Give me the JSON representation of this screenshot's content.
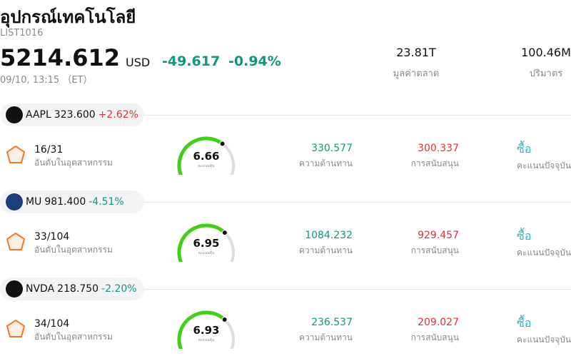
{
  "header": {
    "title": "อุปกรณ์เทคโนโลยี",
    "code": "LIST1016",
    "price": "5214.612",
    "currency": "USD",
    "change": "-49.617",
    "change_pct": "-0.94%",
    "time": "09/10, 13:15 （ET）",
    "stats": [
      {
        "value": "23.81T",
        "label": "มูลค่าตลาด"
      },
      {
        "value": "100.46M",
        "label": "ปริมาตร"
      }
    ]
  },
  "gauge_range": [
    0,
    10
  ],
  "stocks": [
    {
      "ticker": "AAPL",
      "price": "323.600",
      "change": "+2.62%",
      "rank": "16/31",
      "rank_label": "อันดับในอุตสาหกรรม",
      "score": 6.66,
      "score_label": "คะแนนหุ้น",
      "resistance": "330.577",
      "resistance_label": "ความต้านทาน",
      "support": "300.337",
      "support_label": "การสนับสนุน",
      "signal": "ซื้อ",
      "signal_label": "คะแนนปัจจุบัน"
    },
    {
      "ticker": "MU",
      "price": "981.400",
      "change": "-4.51%",
      "rank": "33/104",
      "rank_label": "อันดับในอุตสาหกรรม",
      "score": 6.95,
      "score_label": "คะแนนหุ้น",
      "resistance": "1084.232",
      "resistance_label": "ความต้านทาน",
      "support": "929.457",
      "support_label": "การสนับสนุน",
      "signal": "ซื้อ",
      "signal_label": "คะแนนปัจจุบัน"
    },
    {
      "ticker": "NVDA",
      "price": "218.750",
      "change": "-2.20%",
      "rank": "34/104",
      "rank_label": "อันดับในอุตสาหกรรม",
      "score": 6.93,
      "score_label": "คะแนนหุ้น",
      "resistance": "236.537",
      "resistance_label": "ความต้านทาน",
      "support": "209.027",
      "support_label": "การสนับสนุน",
      "signal": "ซื้อ",
      "signal_label": "คะแนนปัจจุบัน"
    }
  ]
}
